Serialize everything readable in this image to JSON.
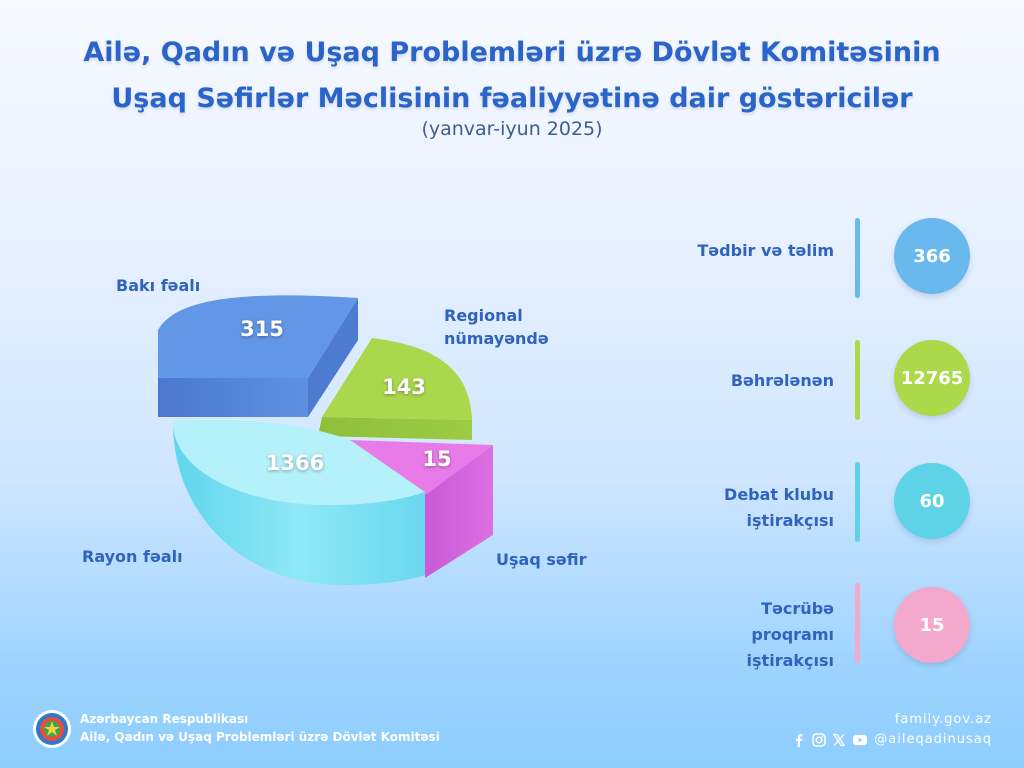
{
  "header": {
    "title_line1": "Ailə, Qadın və Uşaq Problemləri üzrə Dövlət Komitəsinin",
    "title_line2": "Uşaq Səfirlər Məclisinin fəaliyyətinə dair göstəricilər",
    "period": "(yanvar-iyun 2025)"
  },
  "chart_data": {
    "type": "pie",
    "slices": [
      {
        "label": "Bakı fəalı",
        "value": 315,
        "color": "#5b8fe3"
      },
      {
        "label": "Regional nümayəndə",
        "value": 143,
        "color": "#a7d84c"
      },
      {
        "label": "Uşaq səfir",
        "value": 15,
        "color": "#e77be8"
      },
      {
        "label": "Rayon fəalı",
        "value": 1366,
        "color": "#b4f1fb"
      }
    ]
  },
  "stats": [
    {
      "label": "Tədbir və təlim",
      "value": "366",
      "color": "#69b8ee"
    },
    {
      "label": "Bəhrələnən",
      "value": "12765",
      "color": "#abd94a"
    },
    {
      "label": "Debat klubu iştirakçısı",
      "value": "60",
      "color": "#5ed2e6"
    },
    {
      "label": "Təcrübə proqramı iştirakçısı",
      "value": "15",
      "color": "#f2a9cb"
    }
  ],
  "footer": {
    "org_line1": "Azərbaycan Respublikası",
    "org_line2": "Ailə, Qadın və Uşaq Problemləri üzrə Dövlət Komitəsi",
    "website": "family.gov.az",
    "social_handle": "@aileqadinusaq",
    "social_icons": [
      "facebook-icon",
      "instagram-icon",
      "x-icon",
      "youtube-icon"
    ]
  }
}
